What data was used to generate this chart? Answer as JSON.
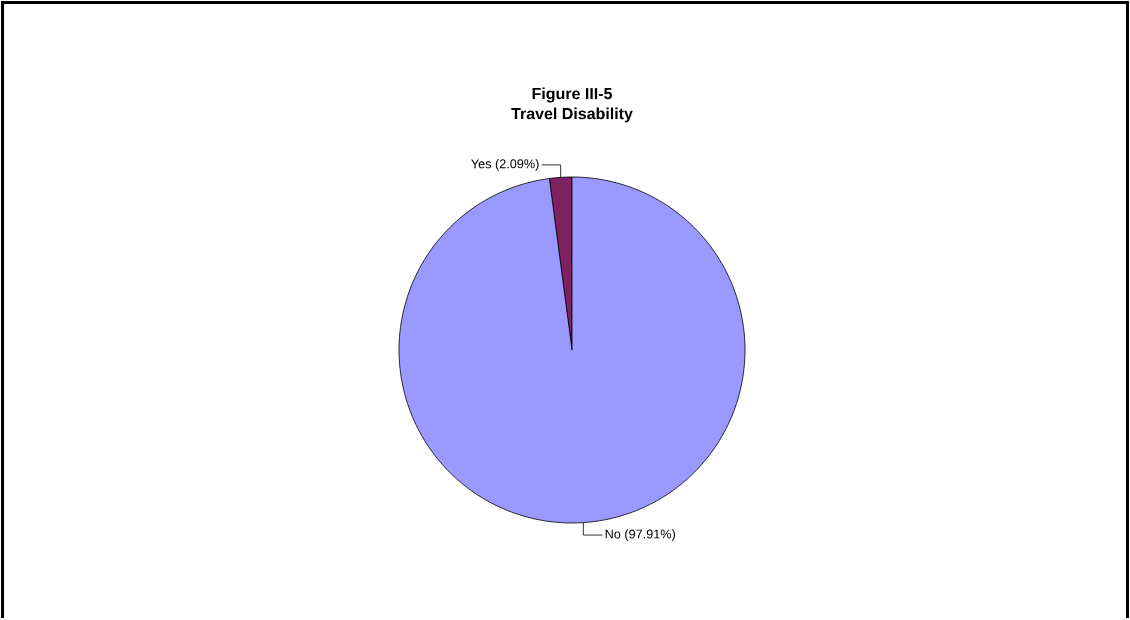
{
  "chart_data": {
    "type": "pie",
    "title": "Figure III-5",
    "subtitle": "Travel Disability",
    "categories": [
      "Yes",
      "No"
    ],
    "values": [
      2.09,
      97.91
    ],
    "colors": [
      "#802060",
      "#9999ff"
    ],
    "value_labels": [
      "(2.09%)",
      "(97.91%)"
    ]
  }
}
